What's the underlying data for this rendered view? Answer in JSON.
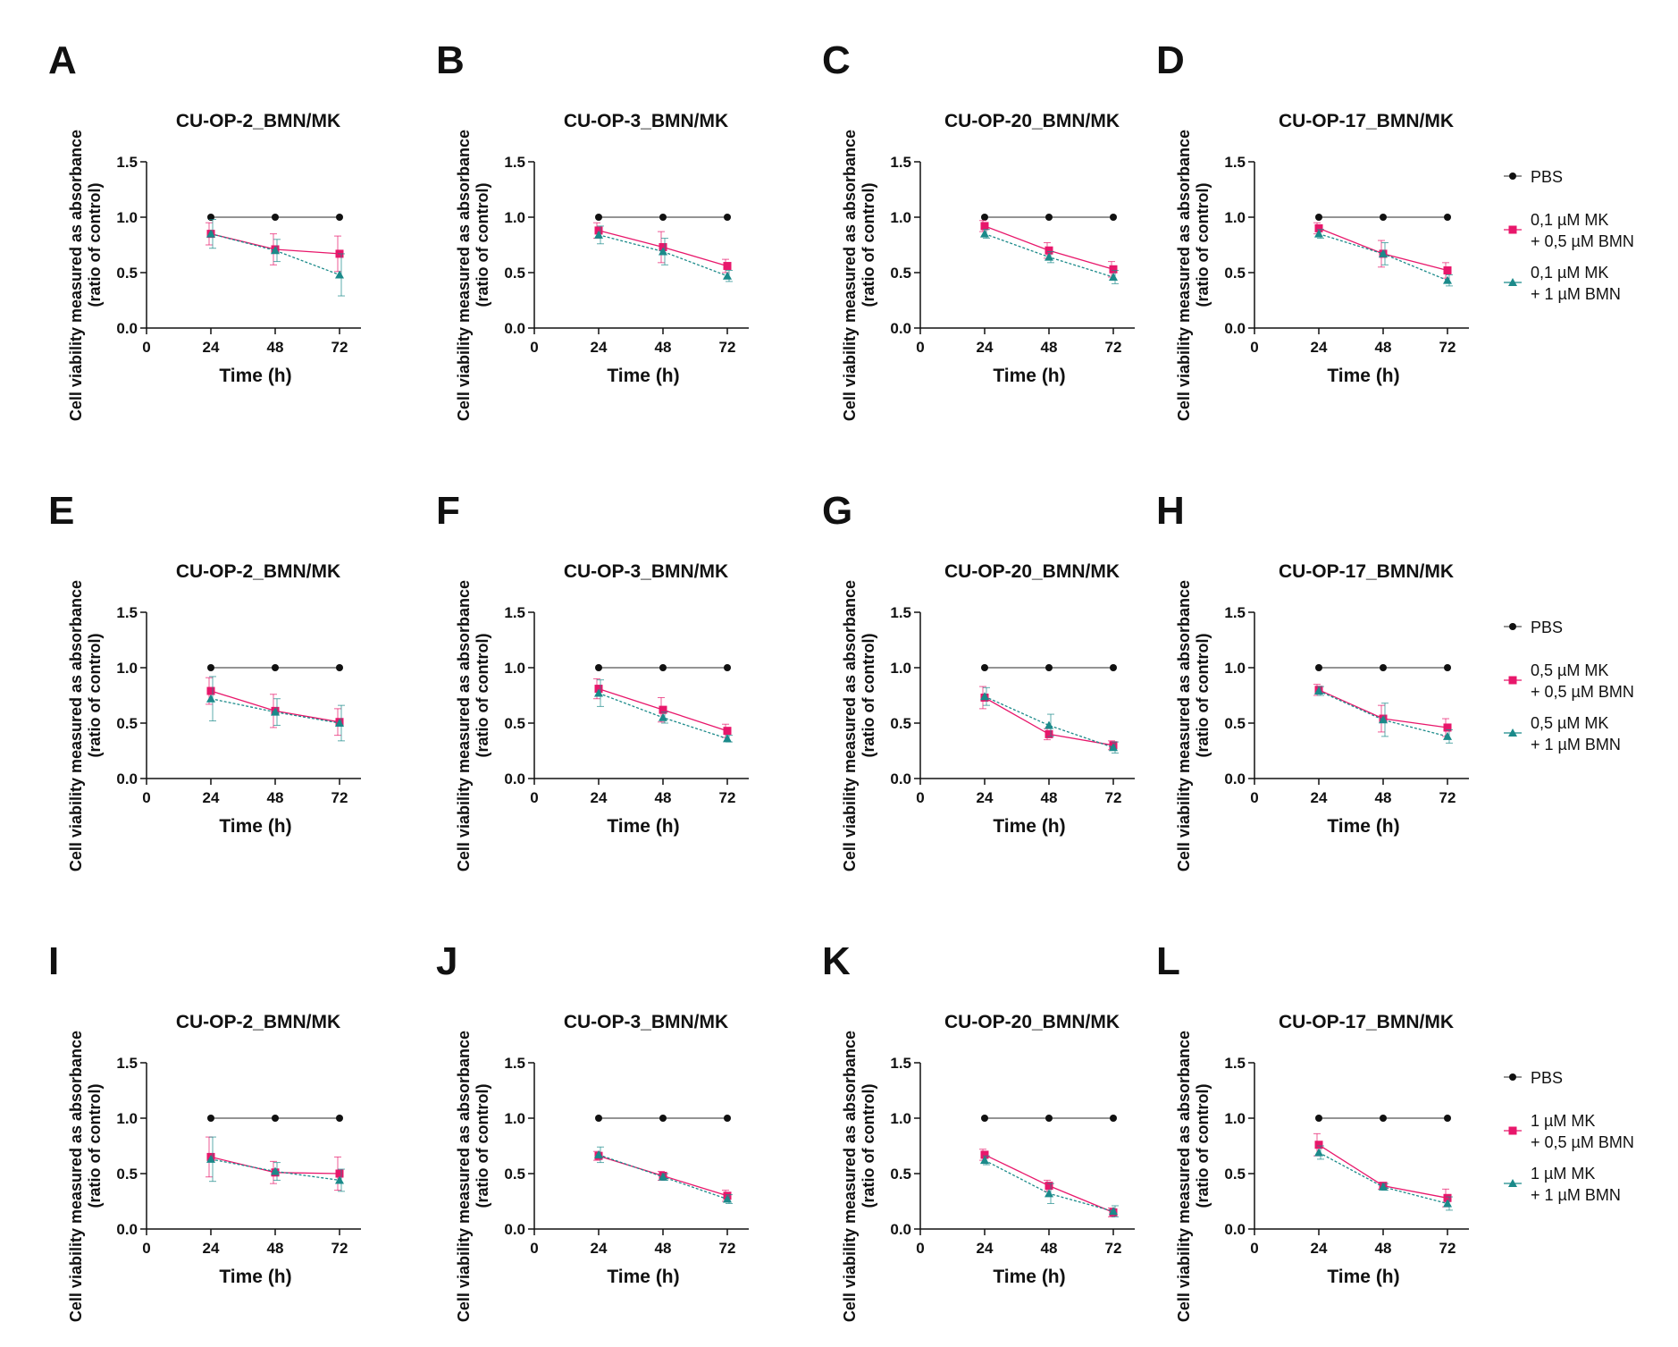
{
  "figure": {
    "y_axis_label_line1": "Cell viability measured as absorbance",
    "y_axis_label_line2": "(ratio of control)",
    "x_axis_label": "Time (h)"
  },
  "legends": [
    {
      "row": 0,
      "entries": [
        {
          "series": "PBS",
          "lines": [
            "PBS"
          ],
          "color": "#111111",
          "marker": "circle"
        },
        {
          "series": "0,1 µM MK + 0,5 µM BMN",
          "lines": [
            "0,1 µM MK",
            "+ 0,5 µM BMN"
          ],
          "color": "#e8176b",
          "marker": "square"
        },
        {
          "series": "0,1 µM MK + 1 µM BMN",
          "lines": [
            "0,1 µM MK",
            "+ 1 µM BMN"
          ],
          "color": "#1b8a8a",
          "marker": "triangle"
        }
      ]
    },
    {
      "row": 1,
      "entries": [
        {
          "series": "PBS",
          "lines": [
            "PBS"
          ],
          "color": "#111111",
          "marker": "circle"
        },
        {
          "series": "0,5 µM MK + 0,5 µM BMN",
          "lines": [
            "0,5 µM MK",
            "+ 0,5 µM BMN"
          ],
          "color": "#e8176b",
          "marker": "square"
        },
        {
          "series": "0,5 µM MK + 1 µM BMN",
          "lines": [
            "0,5 µM MK",
            "+ 1 µM BMN"
          ],
          "color": "#1b8a8a",
          "marker": "triangle"
        }
      ]
    },
    {
      "row": 2,
      "entries": [
        {
          "series": "PBS",
          "lines": [
            "PBS"
          ],
          "color": "#111111",
          "marker": "circle"
        },
        {
          "series": "1 µM MK + 0,5 µM BMN",
          "lines": [
            "1 µM MK",
            "+ 0,5 µM BMN"
          ],
          "color": "#e8176b",
          "marker": "square"
        },
        {
          "series": "1 µM MK + 1 µM BMN",
          "lines": [
            "1 µM MK",
            "+ 1 µM BMN"
          ],
          "color": "#1b8a8a",
          "marker": "triangle"
        }
      ]
    }
  ],
  "chart_data": [
    {
      "panel": "A",
      "type": "line",
      "title": "CU-OP-2_BMN/MK",
      "xlabel": "Time (h)",
      "ylabel": "Cell viability measured as absorbance (ratio of control)",
      "x": [
        24,
        48,
        72
      ],
      "xticks": [
        0,
        24,
        48,
        72
      ],
      "xlim": [
        0,
        80
      ],
      "ylim": [
        0,
        1.5
      ],
      "yticks": [
        "0.0",
        "0.5",
        "1.0",
        "1.5"
      ],
      "series": [
        {
          "name": "PBS",
          "values": [
            1.0,
            1.0,
            1.0
          ],
          "errors": [
            0,
            0,
            0
          ]
        },
        {
          "name": "0,1 µM MK + 0,5 µM BMN",
          "values": [
            0.85,
            0.71,
            0.67
          ],
          "errors": [
            0.1,
            0.14,
            0.16
          ]
        },
        {
          "name": "0,1 µM MK + 1 µM BMN",
          "values": [
            0.85,
            0.7,
            0.48
          ],
          "errors": [
            0.13,
            0.1,
            0.19
          ]
        }
      ]
    },
    {
      "panel": "B",
      "type": "line",
      "title": "CU-OP-3_BMN/MK",
      "xlabel": "Time (h)",
      "ylabel": "Cell viability measured as absorbance (ratio of control)",
      "x": [
        24,
        48,
        72
      ],
      "xticks": [
        0,
        24,
        48,
        72
      ],
      "xlim": [
        0,
        80
      ],
      "ylim": [
        0,
        1.5
      ],
      "yticks": [
        "0.0",
        "0.5",
        "1.0",
        "1.5"
      ],
      "series": [
        {
          "name": "PBS",
          "values": [
            1.0,
            1.0,
            1.0
          ],
          "errors": [
            0,
            0,
            0
          ]
        },
        {
          "name": "0,1 µM MK + 0,5 µM BMN",
          "values": [
            0.88,
            0.73,
            0.56
          ],
          "errors": [
            0.07,
            0.14,
            0.06
          ]
        },
        {
          "name": "0,1 µM MK + 1 µM BMN",
          "values": [
            0.84,
            0.69,
            0.47
          ],
          "errors": [
            0.08,
            0.12,
            0.05
          ]
        }
      ]
    },
    {
      "panel": "C",
      "type": "line",
      "title": "CU-OP-20_BMN/MK",
      "xlabel": "Time (h)",
      "ylabel": "Cell viability measured as absorbance (ratio of control)",
      "x": [
        24,
        48,
        72
      ],
      "xticks": [
        0,
        24,
        48,
        72
      ],
      "xlim": [
        0,
        80
      ],
      "ylim": [
        0,
        1.5
      ],
      "yticks": [
        "0.0",
        "0.5",
        "1.0",
        "1.5"
      ],
      "series": [
        {
          "name": "PBS",
          "values": [
            1.0,
            1.0,
            1.0
          ],
          "errors": [
            0,
            0,
            0
          ]
        },
        {
          "name": "0,1 µM MK + 0,5 µM BMN",
          "values": [
            0.92,
            0.7,
            0.53
          ],
          "errors": [
            0.05,
            0.07,
            0.07
          ]
        },
        {
          "name": "0,1 µM MK + 1 µM BMN",
          "values": [
            0.85,
            0.64,
            0.46
          ],
          "errors": [
            0.04,
            0.05,
            0.06
          ]
        }
      ]
    },
    {
      "panel": "D",
      "type": "line",
      "title": "CU-OP-17_BMN/MK",
      "xlabel": "Time (h)",
      "ylabel": "Cell viability measured as absorbance (ratio of control)",
      "x": [
        24,
        48,
        72
      ],
      "xticks": [
        0,
        24,
        48,
        72
      ],
      "xlim": [
        0,
        80
      ],
      "ylim": [
        0,
        1.5
      ],
      "yticks": [
        "0.0",
        "0.5",
        "1.0",
        "1.5"
      ],
      "series": [
        {
          "name": "PBS",
          "values": [
            1.0,
            1.0,
            1.0
          ],
          "errors": [
            0,
            0,
            0
          ]
        },
        {
          "name": "0,1 µM MK + 0,5 µM BMN",
          "values": [
            0.9,
            0.67,
            0.52
          ],
          "errors": [
            0.05,
            0.12,
            0.07
          ]
        },
        {
          "name": "0,1 µM MK + 1 µM BMN",
          "values": [
            0.85,
            0.67,
            0.43
          ],
          "errors": [
            0.04,
            0.1,
            0.05
          ]
        }
      ]
    },
    {
      "panel": "E",
      "type": "line",
      "title": "CU-OP-2_BMN/MK",
      "xlabel": "Time (h)",
      "ylabel": "Cell viability measured as absorbance (ratio of control)",
      "x": [
        24,
        48,
        72
      ],
      "xticks": [
        0,
        24,
        48,
        72
      ],
      "xlim": [
        0,
        80
      ],
      "ylim": [
        0,
        1.5
      ],
      "yticks": [
        "0.0",
        "0.5",
        "1.0",
        "1.5"
      ],
      "series": [
        {
          "name": "PBS",
          "values": [
            1.0,
            1.0,
            1.0
          ],
          "errors": [
            0,
            0,
            0
          ]
        },
        {
          "name": "0,5 µM MK + 0,5 µM BMN",
          "values": [
            0.79,
            0.61,
            0.51
          ],
          "errors": [
            0.12,
            0.15,
            0.12
          ]
        },
        {
          "name": "0,5 µM MK + 1 µM BMN",
          "values": [
            0.72,
            0.6,
            0.5
          ],
          "errors": [
            0.2,
            0.12,
            0.16
          ]
        }
      ]
    },
    {
      "panel": "F",
      "type": "line",
      "title": "CU-OP-3_BMN/MK",
      "xlabel": "Time (h)",
      "ylabel": "Cell viability measured as absorbance (ratio of control)",
      "x": [
        24,
        48,
        72
      ],
      "xticks": [
        0,
        24,
        48,
        72
      ],
      "xlim": [
        0,
        80
      ],
      "ylim": [
        0,
        1.5
      ],
      "yticks": [
        "0.0",
        "0.5",
        "1.0",
        "1.5"
      ],
      "series": [
        {
          "name": "PBS",
          "values": [
            1.0,
            1.0,
            1.0
          ],
          "errors": [
            0,
            0,
            0
          ]
        },
        {
          "name": "0,5 µM MK + 0,5 µM BMN",
          "values": [
            0.81,
            0.62,
            0.43
          ],
          "errors": [
            0.09,
            0.11,
            0.06
          ]
        },
        {
          "name": "0,5 µM MK + 1 µM BMN",
          "values": [
            0.77,
            0.55,
            0.36
          ],
          "errors": [
            0.12,
            0.05,
            0.03
          ]
        }
      ]
    },
    {
      "panel": "G",
      "type": "line",
      "title": "CU-OP-20_BMN/MK",
      "xlabel": "Time (h)",
      "ylabel": "Cell viability measured as absorbance (ratio of control)",
      "x": [
        24,
        48,
        72
      ],
      "xticks": [
        0,
        24,
        48,
        72
      ],
      "xlim": [
        0,
        80
      ],
      "ylim": [
        0,
        1.5
      ],
      "yticks": [
        "0.0",
        "0.5",
        "1.0",
        "1.5"
      ],
      "series": [
        {
          "name": "PBS",
          "values": [
            1.0,
            1.0,
            1.0
          ],
          "errors": [
            0,
            0,
            0
          ]
        },
        {
          "name": "0,5 µM MK + 0,5 µM BMN",
          "values": [
            0.73,
            0.4,
            0.3
          ],
          "errors": [
            0.1,
            0.05,
            0.04
          ]
        },
        {
          "name": "0,5 µM MK + 1 µM BMN",
          "values": [
            0.74,
            0.48,
            0.28
          ],
          "errors": [
            0.08,
            0.1,
            0.05
          ]
        }
      ]
    },
    {
      "panel": "H",
      "type": "line",
      "title": "CU-OP-17_BMN/MK",
      "xlabel": "Time (h)",
      "ylabel": "Cell viability measured as absorbance (ratio of control)",
      "x": [
        24,
        48,
        72
      ],
      "xticks": [
        0,
        24,
        48,
        72
      ],
      "xlim": [
        0,
        80
      ],
      "ylim": [
        0,
        1.5
      ],
      "yticks": [
        "0.0",
        "0.5",
        "1.0",
        "1.5"
      ],
      "series": [
        {
          "name": "PBS",
          "values": [
            1.0,
            1.0,
            1.0
          ],
          "errors": [
            0,
            0,
            0
          ]
        },
        {
          "name": "0,5 µM MK + 0,5 µM BMN",
          "values": [
            0.8,
            0.54,
            0.46
          ],
          "errors": [
            0.05,
            0.12,
            0.08
          ]
        },
        {
          "name": "0,5 µM MK + 1 µM BMN",
          "values": [
            0.79,
            0.53,
            0.38
          ],
          "errors": [
            0.04,
            0.15,
            0.06
          ]
        }
      ]
    },
    {
      "panel": "I",
      "type": "line",
      "title": "CU-OP-2_BMN/MK",
      "xlabel": "Time (h)",
      "ylabel": "Cell viability measured as absorbance (ratio of control)",
      "x": [
        24,
        48,
        72
      ],
      "xticks": [
        0,
        24,
        48,
        72
      ],
      "xlim": [
        0,
        80
      ],
      "ylim": [
        0,
        1.5
      ],
      "yticks": [
        "0.0",
        "0.5",
        "1.0",
        "1.5"
      ],
      "series": [
        {
          "name": "PBS",
          "values": [
            1.0,
            1.0,
            1.0
          ],
          "errors": [
            0,
            0,
            0
          ]
        },
        {
          "name": "1 µM MK + 0,5 µM BMN",
          "values": [
            0.65,
            0.51,
            0.5
          ],
          "errors": [
            0.18,
            0.1,
            0.15
          ]
        },
        {
          "name": "1 µM MK + 1 µM BMN",
          "values": [
            0.63,
            0.52,
            0.44
          ],
          "errors": [
            0.2,
            0.08,
            0.1
          ]
        }
      ]
    },
    {
      "panel": "J",
      "type": "line",
      "title": "CU-OP-3_BMN/MK",
      "xlabel": "Time (h)",
      "ylabel": "Cell viability measured as absorbance (ratio of control)",
      "x": [
        24,
        48,
        72
      ],
      "xticks": [
        0,
        24,
        48,
        72
      ],
      "xlim": [
        0,
        80
      ],
      "ylim": [
        0,
        1.5
      ],
      "yticks": [
        "0.0",
        "0.5",
        "1.0",
        "1.5"
      ],
      "series": [
        {
          "name": "PBS",
          "values": [
            1.0,
            1.0,
            1.0
          ],
          "errors": [
            0,
            0,
            0
          ]
        },
        {
          "name": "1 µM MK + 0,5 µM BMN",
          "values": [
            0.66,
            0.48,
            0.3
          ],
          "errors": [
            0.04,
            0.04,
            0.05
          ]
        },
        {
          "name": "1 µM MK + 1 µM BMN",
          "values": [
            0.67,
            0.47,
            0.27
          ],
          "errors": [
            0.07,
            0.03,
            0.04
          ]
        }
      ]
    },
    {
      "panel": "K",
      "type": "line",
      "title": "CU-OP-20_BMN/MK",
      "xlabel": "Time (h)",
      "ylabel": "Cell viability measured as absorbance (ratio of control)",
      "x": [
        24,
        48,
        72
      ],
      "xticks": [
        0,
        24,
        48,
        72
      ],
      "xlim": [
        0,
        80
      ],
      "ylim": [
        0,
        1.5
      ],
      "yticks": [
        "0.0",
        "0.5",
        "1.0",
        "1.5"
      ],
      "series": [
        {
          "name": "PBS",
          "values": [
            1.0,
            1.0,
            1.0
          ],
          "errors": [
            0,
            0,
            0
          ]
        },
        {
          "name": "1 µM MK + 0,5 µM BMN",
          "values": [
            0.67,
            0.39,
            0.15
          ],
          "errors": [
            0.05,
            0.05,
            0.04
          ]
        },
        {
          "name": "1 µM MK + 1 µM BMN",
          "values": [
            0.62,
            0.32,
            0.16
          ],
          "errors": [
            0.04,
            0.09,
            0.05
          ]
        }
      ]
    },
    {
      "panel": "L",
      "type": "line",
      "title": "CU-OP-17_BMN/MK",
      "xlabel": "Time (h)",
      "ylabel": "Cell viability measured as absorbance (ratio of control)",
      "x": [
        24,
        48,
        72
      ],
      "xticks": [
        0,
        24,
        48,
        72
      ],
      "xlim": [
        0,
        80
      ],
      "ylim": [
        0,
        1.5
      ],
      "yticks": [
        "0.0",
        "0.5",
        "1.0",
        "1.5"
      ],
      "series": [
        {
          "name": "PBS",
          "values": [
            1.0,
            1.0,
            1.0
          ],
          "errors": [
            0,
            0,
            0
          ]
        },
        {
          "name": "1 µM MK + 0,5 µM BMN",
          "values": [
            0.76,
            0.39,
            0.28
          ],
          "errors": [
            0.1,
            0.03,
            0.08
          ]
        },
        {
          "name": "1 µM MK + 1 µM BMN",
          "values": [
            0.69,
            0.38,
            0.23
          ],
          "errors": [
            0.06,
            0.03,
            0.06
          ]
        }
      ]
    }
  ]
}
